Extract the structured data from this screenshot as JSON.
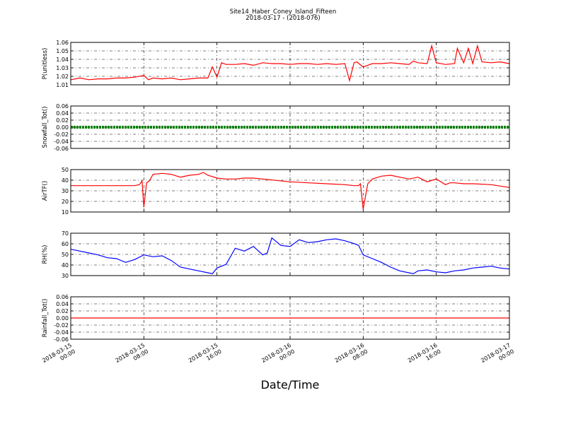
{
  "title": "Site14_Haber_Coney_Island_Fifteen",
  "subtitle": "2018-03-17 - (2018-076)",
  "xlabel": "Date/Time",
  "colors": {
    "P": "#ff0000",
    "Snow": "#008000",
    "AirT": "#ff0000",
    "RH": "#0000ff",
    "Rain": "#ff0000"
  },
  "x_ticks": [
    {
      "line1": "2018-03-15",
      "line2": "00:00"
    },
    {
      "line1": "2018-03-15",
      "line2": "08:00"
    },
    {
      "line1": "2018-03-15",
      "line2": "16:00"
    },
    {
      "line1": "2018-03-16",
      "line2": "00:00"
    },
    {
      "line1": "2018-03-16",
      "line2": "08:00"
    },
    {
      "line1": "2018-03-16",
      "line2": "16:00"
    },
    {
      "line1": "2018-03-17",
      "line2": "00:00"
    }
  ],
  "chart_data": [
    {
      "type": "line",
      "ylabel": "P(unitless)",
      "ylim": [
        1.01,
        1.06
      ],
      "yticks": [
        "1.01",
        "1.02",
        "1.03",
        "1.04",
        "1.05",
        "1.06"
      ],
      "x_unit_hours": true,
      "x": [
        0,
        1,
        2,
        3,
        4,
        5,
        6,
        7,
        8,
        8.5,
        9,
        10,
        11,
        12,
        13,
        14,
        15,
        15.5,
        16,
        16.5,
        17,
        18,
        19,
        20,
        21,
        22,
        23,
        24,
        25,
        26,
        27,
        28,
        29,
        30,
        30.5,
        31,
        31.3,
        32,
        33,
        34,
        35,
        36,
        37,
        37.5,
        38,
        39,
        39.5,
        40,
        41,
        42,
        42.3,
        43,
        43.5,
        44,
        44.5,
        45,
        46,
        47,
        48
      ],
      "values": [
        1.016,
        1.018,
        1.016,
        1.017,
        1.017,
        1.018,
        1.018,
        1.019,
        1.021,
        1.016,
        1.018,
        1.017,
        1.018,
        1.016,
        1.017,
        1.018,
        1.018,
        1.031,
        1.019,
        1.036,
        1.034,
        1.034,
        1.035,
        1.033,
        1.036,
        1.035,
        1.035,
        1.034,
        1.035,
        1.035,
        1.034,
        1.035,
        1.034,
        1.035,
        1.015,
        1.036,
        1.037,
        1.031,
        1.035,
        1.035,
        1.036,
        1.035,
        1.034,
        1.038,
        1.036,
        1.035,
        1.056,
        1.036,
        1.034,
        1.035,
        1.053,
        1.036,
        1.053,
        1.035,
        1.056,
        1.037,
        1.036,
        1.037,
        1.035
      ]
    },
    {
      "type": "line",
      "ylabel": "Snowfall_Tot()",
      "ylim": [
        -0.06,
        0.06
      ],
      "yticks": [
        "-0.06",
        "-0.04",
        "-0.02",
        "0.00",
        "0.02",
        "0.04",
        "0.06"
      ],
      "x": [
        0,
        48
      ],
      "values": [
        0,
        0
      ]
    },
    {
      "type": "line",
      "ylabel": "AirTF()",
      "ylim": [
        5,
        50
      ],
      "yticks": [
        "10",
        "20",
        "30",
        "40",
        "50"
      ],
      "x": [
        0,
        2,
        4,
        6,
        7,
        7.5,
        7.8,
        8,
        8.3,
        8.6,
        9,
        10,
        11,
        12,
        13,
        14,
        14.5,
        15,
        16,
        17,
        18,
        19,
        20,
        21,
        22,
        24,
        26,
        28,
        30,
        31,
        31.5,
        31.7,
        32,
        32.5,
        33,
        34,
        35,
        36,
        37,
        38,
        39,
        40,
        41,
        41.5,
        42,
        43,
        44,
        46,
        48
      ],
      "values": [
        33,
        33,
        33,
        33,
        33,
        34,
        38,
        10,
        36,
        38,
        45,
        46,
        45,
        42,
        44,
        45,
        47,
        44,
        41,
        40,
        40,
        41,
        41,
        40,
        39,
        37,
        36,
        35,
        34,
        33,
        33,
        35,
        8,
        35,
        40,
        43,
        44,
        42,
        40,
        42,
        37,
        40,
        34,
        36,
        36,
        35,
        35,
        34,
        31
      ]
    },
    {
      "type": "line",
      "ylabel": "RH(%)",
      "ylim": [
        30,
        75
      ],
      "yticks": [
        "30",
        "40",
        "50",
        "60",
        "70"
      ],
      "x": [
        0,
        1,
        2,
        3,
        4,
        5,
        6,
        7,
        8,
        9,
        10,
        11,
        12,
        13,
        14,
        15,
        15.5,
        16,
        17,
        18,
        19,
        20,
        21,
        21.5,
        22,
        23,
        24,
        25,
        26,
        27,
        28,
        29,
        30,
        31,
        31.5,
        32,
        33,
        34,
        35,
        36,
        37,
        37.5,
        38,
        39,
        40,
        41,
        42,
        43,
        44,
        45,
        46,
        47,
        48
      ],
      "values": [
        58,
        56,
        54,
        52,
        49,
        48,
        44,
        47,
        52,
        50,
        51,
        46,
        39,
        37,
        35,
        33,
        32,
        38,
        42,
        59,
        56,
        61,
        52,
        54,
        70,
        62,
        61,
        68,
        65,
        66,
        68,
        69,
        67,
        64,
        62,
        52,
        48,
        44,
        39,
        35,
        33,
        32,
        35,
        36,
        34,
        33,
        35,
        36,
        38,
        39,
        40,
        38,
        37
      ]
    },
    {
      "type": "line",
      "ylabel": "Rainfall_Tot()",
      "ylim": [
        -0.06,
        0.06
      ],
      "yticks": [
        "-0.06",
        "-0.04",
        "-0.02",
        "0.00",
        "0.02",
        "0.04",
        "0.06"
      ],
      "x": [
        0,
        48
      ],
      "values": [
        0,
        0
      ]
    }
  ]
}
